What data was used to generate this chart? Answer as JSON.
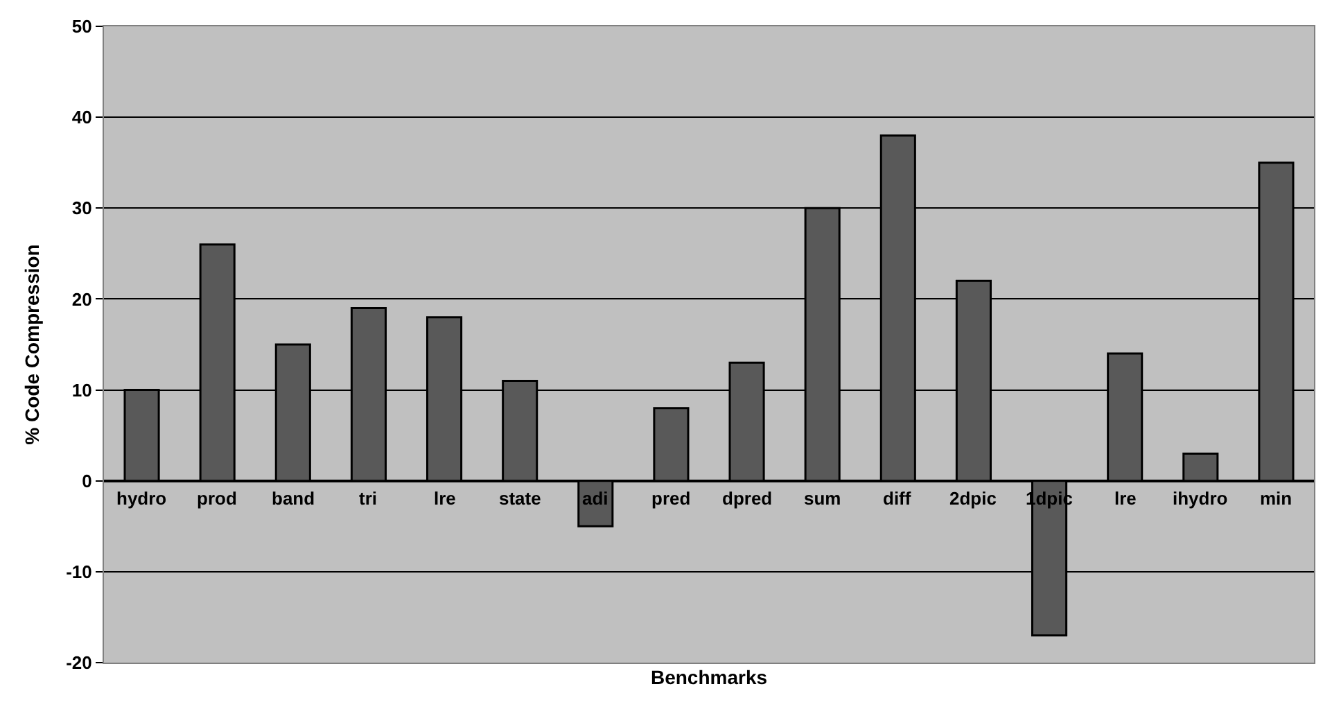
{
  "chart_data": {
    "type": "bar",
    "xlabel": "Benchmarks",
    "ylabel": "% Code Compression",
    "categories": [
      "hydro",
      "prod",
      "band",
      "tri",
      "lre",
      "state",
      "adi",
      "pred",
      "dpred",
      "sum",
      "diff",
      "2dpic",
      "1dpic",
      "lre",
      "ihydro",
      "min"
    ],
    "values": [
      10,
      26,
      15,
      19,
      18,
      11,
      -5,
      8,
      13,
      30,
      38,
      22,
      -17,
      14,
      3,
      35
    ],
    "color": "#595959",
    "ylim": [
      -20,
      50
    ],
    "yticks": [
      -20,
      -10,
      0,
      10,
      20,
      30,
      40,
      50
    ],
    "grid": "y"
  }
}
